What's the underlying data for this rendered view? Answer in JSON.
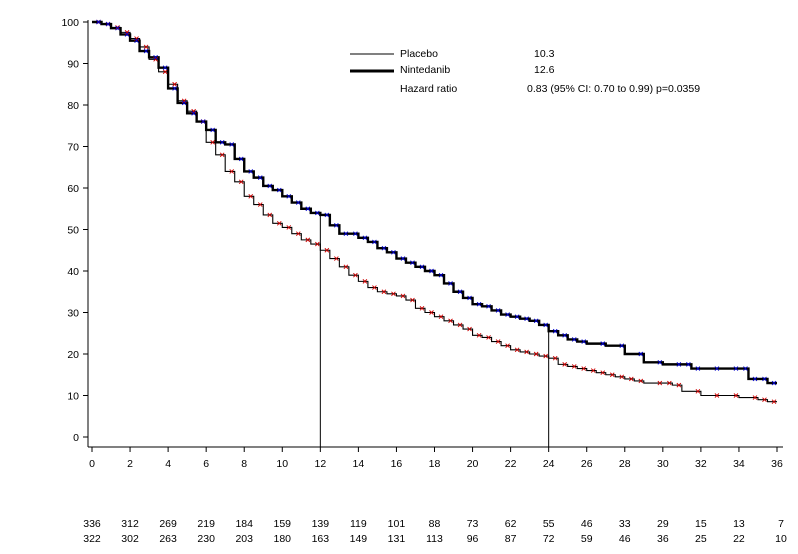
{
  "chart_data": {
    "type": "line",
    "title": "",
    "xlabel": "",
    "ylabel": "",
    "xlim": [
      0,
      36
    ],
    "ylim": [
      0,
      100
    ],
    "x_ticks": [
      0,
      2,
      4,
      6,
      8,
      10,
      12,
      14,
      16,
      18,
      20,
      22,
      24,
      26,
      28,
      30,
      32,
      34,
      36
    ],
    "y_ticks": [
      0,
      10,
      20,
      30,
      40,
      50,
      60,
      70,
      80,
      90,
      100
    ],
    "legend": {
      "position": "top-right",
      "entries": [
        {
          "label": "Placebo",
          "value": "10.3"
        },
        {
          "label": "Nintedanib",
          "value": "12.6"
        },
        {
          "label": "Hazard ratio",
          "value": "0.83 (95% CI: 0.70 to 0.99) p=0.0359"
        }
      ]
    },
    "reference_lines_x": [
      12,
      24
    ],
    "censor_colors": {
      "Placebo": "#cc0000",
      "Nintedanib": "#0000cc"
    },
    "series": [
      {
        "name": "Placebo",
        "line_width": "thin",
        "points": [
          [
            0,
            100
          ],
          [
            0.5,
            99.5
          ],
          [
            1,
            98.7
          ],
          [
            1.5,
            97.5
          ],
          [
            2,
            96
          ],
          [
            2.5,
            94
          ],
          [
            3,
            91
          ],
          [
            3.5,
            88
          ],
          [
            4,
            85
          ],
          [
            4.5,
            81
          ],
          [
            5,
            78.5
          ],
          [
            5.5,
            76
          ],
          [
            6,
            71
          ],
          [
            6.5,
            68
          ],
          [
            7,
            64
          ],
          [
            7.5,
            61.5
          ],
          [
            8,
            58
          ],
          [
            8.5,
            56
          ],
          [
            9,
            53.5
          ],
          [
            9.5,
            51.5
          ],
          [
            10,
            50.5
          ],
          [
            10.5,
            49
          ],
          [
            11,
            47.5
          ],
          [
            11.5,
            46.5
          ],
          [
            12,
            45
          ],
          [
            12.5,
            43
          ],
          [
            13,
            41
          ],
          [
            13.5,
            39
          ],
          [
            14,
            37.5
          ],
          [
            14.5,
            36
          ],
          [
            15,
            35
          ],
          [
            15.5,
            34.5
          ],
          [
            16,
            34
          ],
          [
            16.5,
            33
          ],
          [
            17,
            31
          ],
          [
            17.5,
            30
          ],
          [
            18,
            29
          ],
          [
            18.5,
            28
          ],
          [
            19,
            27
          ],
          [
            19.5,
            26
          ],
          [
            20,
            24.5
          ],
          [
            20.5,
            24
          ],
          [
            21,
            23
          ],
          [
            21.5,
            22
          ],
          [
            22,
            21
          ],
          [
            22.5,
            20.5
          ],
          [
            23,
            20
          ],
          [
            23.5,
            19.5
          ],
          [
            24,
            19
          ],
          [
            24.5,
            17.5
          ],
          [
            25,
            17
          ],
          [
            25.5,
            16.5
          ],
          [
            26,
            16
          ],
          [
            26.5,
            15.5
          ],
          [
            27,
            15
          ],
          [
            27.5,
            14.5
          ],
          [
            28,
            14
          ],
          [
            28.5,
            13.5
          ],
          [
            29,
            13
          ],
          [
            30,
            13
          ],
          [
            30.5,
            12.5
          ],
          [
            31,
            11
          ],
          [
            32,
            10
          ],
          [
            33,
            10
          ],
          [
            34,
            9.5
          ],
          [
            35,
            9
          ],
          [
            35.5,
            8.5
          ],
          [
            36,
            8.5
          ]
        ],
        "risk_counts": [
          336,
          312,
          269,
          219,
          184,
          159,
          139,
          119,
          101,
          88,
          73,
          62,
          55,
          46,
          33,
          29,
          15,
          13,
          7
        ]
      },
      {
        "name": "Nintedanib",
        "line_width": "thick",
        "points": [
          [
            0,
            100
          ],
          [
            0.5,
            99.5
          ],
          [
            1,
            98.5
          ],
          [
            1.5,
            97
          ],
          [
            2,
            95.5
          ],
          [
            2.5,
            93
          ],
          [
            3,
            91.5
          ],
          [
            3.5,
            89
          ],
          [
            4,
            84
          ],
          [
            4.5,
            80.5
          ],
          [
            5,
            78
          ],
          [
            5.5,
            76
          ],
          [
            6,
            74
          ],
          [
            6.5,
            71
          ],
          [
            7,
            70.5
          ],
          [
            7.5,
            67
          ],
          [
            8,
            64
          ],
          [
            8.5,
            62.5
          ],
          [
            9,
            60.5
          ],
          [
            9.5,
            59.5
          ],
          [
            10,
            58
          ],
          [
            10.5,
            56.5
          ],
          [
            11,
            55
          ],
          [
            11.5,
            54
          ],
          [
            12,
            53.5
          ],
          [
            12.5,
            51
          ],
          [
            13,
            49
          ],
          [
            13.5,
            49
          ],
          [
            14,
            48
          ],
          [
            14.5,
            47
          ],
          [
            15,
            45.5
          ],
          [
            15.5,
            44.5
          ],
          [
            16,
            43
          ],
          [
            16.5,
            42
          ],
          [
            17,
            41
          ],
          [
            17.5,
            40
          ],
          [
            18,
            39
          ],
          [
            18.5,
            37
          ],
          [
            19,
            35
          ],
          [
            19.5,
            33.5
          ],
          [
            20,
            32
          ],
          [
            20.5,
            31.5
          ],
          [
            21,
            30.5
          ],
          [
            21.5,
            29.5
          ],
          [
            22,
            29
          ],
          [
            22.5,
            28.5
          ],
          [
            23,
            28
          ],
          [
            23.5,
            27
          ],
          [
            24,
            25.5
          ],
          [
            24.5,
            24.5
          ],
          [
            25,
            23.5
          ],
          [
            25.5,
            23
          ],
          [
            26,
            22.5
          ],
          [
            27,
            22
          ],
          [
            28,
            20
          ],
          [
            29,
            18
          ],
          [
            30,
            17.5
          ],
          [
            31,
            17.5
          ],
          [
            31.5,
            16.5
          ],
          [
            32,
            16.5
          ],
          [
            33,
            16.5
          ],
          [
            34,
            16.5
          ],
          [
            34.5,
            14
          ],
          [
            35,
            14
          ],
          [
            35.5,
            13
          ],
          [
            36,
            13
          ]
        ],
        "risk_counts": [
          322,
          302,
          263,
          230,
          203,
          180,
          163,
          149,
          131,
          113,
          96,
          87,
          72,
          59,
          46,
          36,
          25,
          22,
          10
        ]
      }
    ]
  }
}
